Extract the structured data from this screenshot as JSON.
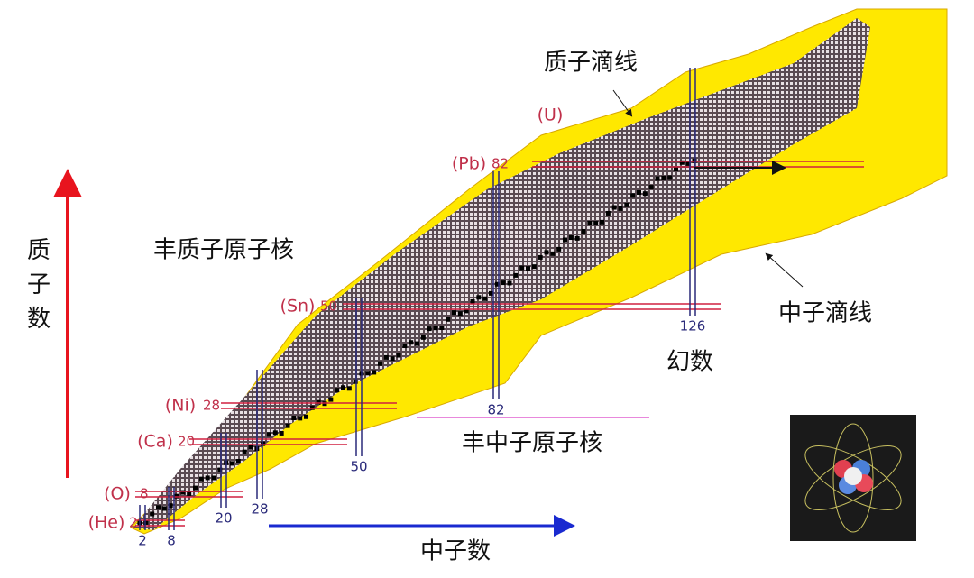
{
  "labels": {
    "proton_axis": "质子数",
    "neutron_axis": "中子数",
    "proton_drip_line": "质子滴线",
    "neutron_drip_line": "中子滴线",
    "proton_rich": "丰质子原子核",
    "neutron_rich": "丰中子原子核",
    "magic_numbers": "幻数"
  },
  "proton_magic": [
    {
      "element": "(He)",
      "number": "2"
    },
    {
      "element": "(O)",
      "number": "8"
    },
    {
      "element": "(Ca)",
      "number": "20"
    },
    {
      "element": "(Ni)",
      "number": "28"
    },
    {
      "element": "(Sn)",
      "number": "50"
    },
    {
      "element": "(Pb)",
      "number": "82"
    },
    {
      "element": "(U)"
    }
  ],
  "neutron_magic": [
    "2",
    "8",
    "20",
    "28",
    "50",
    "82",
    "126"
  ]
}
